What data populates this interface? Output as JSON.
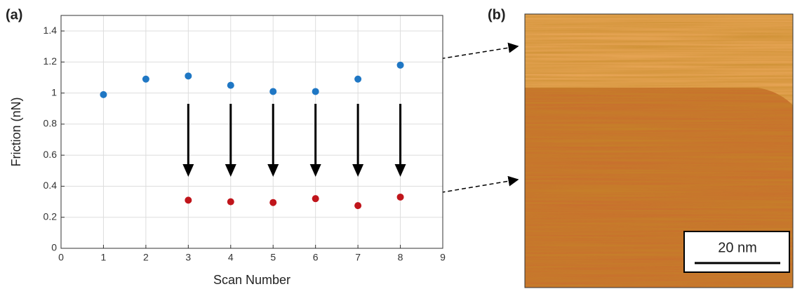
{
  "chart_data": {
    "type": "scatter",
    "panel_label": "(a)",
    "x_label": "Scan Number",
    "y_label": "Friction (nN)",
    "series": [
      {
        "color": "#1f77c4",
        "x": [
          1,
          2,
          3,
          4,
          5,
          6,
          7,
          8
        ],
        "values": [
          0.99,
          1.09,
          1.11,
          1.05,
          1.01,
          1.01,
          1.09,
          1.18
        ]
      },
      {
        "color": "#c0151b",
        "x": [
          3,
          4,
          5,
          6,
          7,
          8
        ],
        "values": [
          0.31,
          0.3,
          0.295,
          0.32,
          0.275,
          0.33
        ]
      }
    ],
    "xlim": [
      0,
      9
    ],
    "xticks": [
      0,
      1,
      2,
      3,
      4,
      5,
      6,
      7,
      8,
      9
    ],
    "ylim": [
      0,
      1.5
    ],
    "yticks": [
      0,
      0.2,
      0.4,
      0.6,
      0.8,
      1,
      1.2,
      1.4
    ],
    "grid": true
  },
  "image_panel": {
    "label": "(b)",
    "scale_bar": "20 nm"
  }
}
